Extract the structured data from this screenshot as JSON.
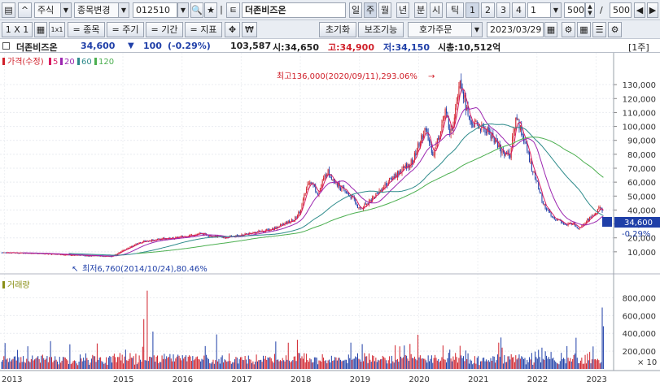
{
  "toolbar": {
    "market_label": "주식",
    "symbol_search_label": "종목변경",
    "code_value": "012510",
    "name_value": "더존비즈온",
    "tabs": [
      "일",
      "주",
      "월",
      "년",
      "분",
      "시",
      "틱"
    ],
    "active_tab": "주",
    "numbers": [
      "1",
      "2",
      "3",
      "4"
    ],
    "period_value": "1",
    "count_value": "500",
    "count_total": "500",
    "slash": "/",
    "layout_label": "1 X 1",
    "add_item_label": "= 종목",
    "add_cycle_label": "= 주기",
    "add_period_label": "= 기간",
    "add_indicator_label": "= 지표",
    "won_label": "₩",
    "reset_label": "초기화",
    "supplement_label": "보조기능",
    "order_label": "호가주문",
    "date_value": "2023/03/29"
  },
  "info": {
    "name": "더존비즈온",
    "price": "34,600",
    "change_arrow": "▼",
    "change": "100",
    "change_pct": "(-0.29%)",
    "volume": "103,587",
    "open": "시:34,650",
    "high": "고:34,900",
    "low": "저:34,150",
    "mktcap": "시총:10,512억",
    "cycle_badge": "[1주]"
  },
  "colors": {
    "up": "#d0202a",
    "down": "#1f3fa8",
    "ma5": "#d81b60",
    "ma20": "#9c27b0",
    "ma60": "#2e8b8b",
    "ma120": "#4caf50",
    "volume": "#8a8f16"
  },
  "chart_data": {
    "type": "candlestick",
    "cycle": "weekly",
    "price_legend": {
      "label": "가격(수정)",
      "ma": [
        "5",
        "20",
        "60",
        "120"
      ]
    },
    "volume_legend": "거래량",
    "annotations": {
      "high": "최고136,000(2020/09/11),293.06%",
      "low": "최저6,760(2014/10/24),80.46%"
    },
    "price_axis_ticks": [
      "130,000",
      "120,000",
      "110,000",
      "100,000",
      "90,000",
      "80,000",
      "70,000",
      "60,000",
      "50,000",
      "40,000",
      "30,000",
      "20,000",
      "10,000"
    ],
    "price_ylim": [
      0,
      140000
    ],
    "current_price_label": "34,600",
    "current_change_label": "-0.29%",
    "volume_axis_ticks": [
      "800,000",
      "600,000",
      "400,000",
      "200,000"
    ],
    "volume_unit": "× 10",
    "volume_ylim": [
      0,
      950000
    ],
    "x_ticks": [
      "2013",
      "2015",
      "2016",
      "2017",
      "2018",
      "2019",
      "2020",
      "2021",
      "2022",
      "2023"
    ],
    "anchors": [
      [
        2012.95,
        9500
      ],
      [
        2013.5,
        9000
      ],
      [
        2014.0,
        8000
      ],
      [
        2014.5,
        7200
      ],
      [
        2014.81,
        6760
      ],
      [
        2015.0,
        11000
      ],
      [
        2015.3,
        17000
      ],
      [
        2015.6,
        19000
      ],
      [
        2015.9,
        20000
      ],
      [
        2016.3,
        23000
      ],
      [
        2016.7,
        20000
      ],
      [
        2017.0,
        22000
      ],
      [
        2017.5,
        26000
      ],
      [
        2017.9,
        33000
      ],
      [
        2018.0,
        40000
      ],
      [
        2018.15,
        62000
      ],
      [
        2018.3,
        52000
      ],
      [
        2018.45,
        68000
      ],
      [
        2018.7,
        55000
      ],
      [
        2018.9,
        48000
      ],
      [
        2019.0,
        40000
      ],
      [
        2019.3,
        52000
      ],
      [
        2019.6,
        65000
      ],
      [
        2019.9,
        75000
      ],
      [
        2020.1,
        98000
      ],
      [
        2020.25,
        80000
      ],
      [
        2020.45,
        110000
      ],
      [
        2020.55,
        95000
      ],
      [
        2020.7,
        136000
      ],
      [
        2020.85,
        104000
      ],
      [
        2021.0,
        100000
      ],
      [
        2021.2,
        96000
      ],
      [
        2021.4,
        82000
      ],
      [
        2021.55,
        80000
      ],
      [
        2021.65,
        108000
      ],
      [
        2021.8,
        88000
      ],
      [
        2021.9,
        72000
      ],
      [
        2022.0,
        60000
      ],
      [
        2022.1,
        45000
      ],
      [
        2022.25,
        35000
      ],
      [
        2022.4,
        32000
      ],
      [
        2022.5,
        29000
      ],
      [
        2022.6,
        31000
      ],
      [
        2022.7,
        27000
      ],
      [
        2022.85,
        33000
      ],
      [
        2022.95,
        36000
      ],
      [
        2023.08,
        42000
      ],
      [
        2023.14,
        34600
      ]
    ]
  }
}
